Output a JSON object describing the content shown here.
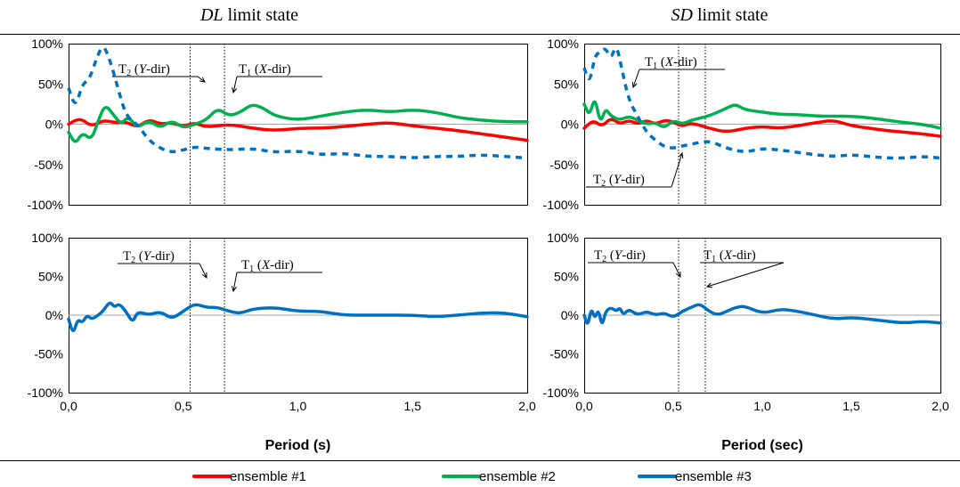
{
  "chart_data": [
    {
      "id": "dl-top",
      "type": "line",
      "title": "DL limit state",
      "xlim": [
        0,
        2.0
      ],
      "ylim": [
        -100,
        100
      ],
      "yticks": [
        "100%",
        "50%",
        "0%",
        "-50%",
        "-100%"
      ],
      "xticks": [],
      "grid": false,
      "vlines": [
        0.53,
        0.68
      ],
      "annotations": [
        {
          "label": "T2 (Y-dir)",
          "points_to": 0.53
        },
        {
          "label": "T1 (X-dir)",
          "points_to": 0.68
        }
      ],
      "series": [
        {
          "name": "ensemble #1",
          "color": "#ff0000",
          "dashed": false,
          "x": [
            0,
            0.05,
            0.1,
            0.15,
            0.2,
            0.25,
            0.3,
            0.35,
            0.4,
            0.45,
            0.5,
            0.55,
            0.6,
            0.7,
            0.8,
            0.9,
            1.0,
            1.1,
            1.2,
            1.3,
            1.4,
            1.5,
            1.6,
            1.7,
            1.8,
            1.9,
            2.0
          ],
          "y": [
            0,
            8,
            -3,
            5,
            2,
            3,
            -4,
            6,
            0,
            2,
            -3,
            2,
            -4,
            0,
            -5,
            -8,
            -5,
            -5,
            -3,
            0,
            2,
            -2,
            -5,
            -8,
            -12,
            -16,
            -20
          ]
        },
        {
          "name": "ensemble #2",
          "color": "#00b050",
          "dashed": false,
          "x": [
            0,
            0.03,
            0.06,
            0.1,
            0.13,
            0.16,
            0.2,
            0.23,
            0.26,
            0.3,
            0.35,
            0.4,
            0.45,
            0.5,
            0.55,
            0.6,
            0.65,
            0.7,
            0.75,
            0.8,
            0.85,
            0.9,
            1.0,
            1.1,
            1.2,
            1.3,
            1.4,
            1.5,
            1.6,
            1.7,
            1.8,
            1.9,
            2.0
          ],
          "y": [
            -10,
            -25,
            -10,
            -20,
            5,
            25,
            10,
            0,
            10,
            -5,
            5,
            -5,
            5,
            -5,
            0,
            5,
            20,
            10,
            15,
            25,
            20,
            10,
            5,
            10,
            15,
            18,
            15,
            18,
            15,
            8,
            5,
            3,
            3
          ]
        },
        {
          "name": "ensemble #3",
          "color": "#0070c0",
          "dashed": true,
          "x": [
            0,
            0.03,
            0.06,
            0.09,
            0.12,
            0.15,
            0.18,
            0.21,
            0.25,
            0.3,
            0.35,
            0.4,
            0.45,
            0.5,
            0.55,
            0.6,
            0.7,
            0.8,
            0.9,
            1.0,
            1.1,
            1.2,
            1.3,
            1.4,
            1.5,
            1.6,
            1.7,
            1.8,
            1.9,
            2.0
          ],
          "y": [
            45,
            20,
            50,
            55,
            80,
            100,
            80,
            50,
            10,
            0,
            -20,
            -30,
            -35,
            -32,
            -28,
            -30,
            -32,
            -30,
            -35,
            -33,
            -38,
            -36,
            -40,
            -40,
            -42,
            -40,
            -40,
            -38,
            -40,
            -42
          ]
        }
      ]
    },
    {
      "id": "sd-top",
      "type": "line",
      "title": "SD limit state",
      "xlim": [
        0,
        2.0
      ],
      "ylim": [
        -100,
        100
      ],
      "yticks": [
        "100%",
        "50%",
        "0%",
        "-50%",
        "-100%"
      ],
      "xticks": [],
      "grid": false,
      "vlines": [
        0.53,
        0.68
      ],
      "annotations": [
        {
          "label": "T1 (X-dir)",
          "points_to": 0.68
        },
        {
          "label": "T2 (Y-dir)",
          "points_to": 0.53
        }
      ],
      "series": [
        {
          "name": "ensemble #1",
          "color": "#ff0000",
          "dashed": false,
          "x": [
            0,
            0.05,
            0.1,
            0.15,
            0.2,
            0.25,
            0.3,
            0.35,
            0.4,
            0.45,
            0.5,
            0.55,
            0.6,
            0.7,
            0.8,
            0.9,
            1.0,
            1.1,
            1.2,
            1.3,
            1.4,
            1.5,
            1.6,
            1.7,
            1.8,
            1.9,
            2.0
          ],
          "y": [
            -5,
            5,
            -3,
            8,
            0,
            5,
            0,
            5,
            0,
            5,
            3,
            -3,
            2,
            -5,
            -10,
            -5,
            -3,
            -5,
            -2,
            2,
            5,
            -2,
            -5,
            -8,
            -10,
            -12,
            -15
          ]
        },
        {
          "name": "ensemble #2",
          "color": "#00b050",
          "dashed": false,
          "x": [
            0,
            0.03,
            0.06,
            0.09,
            0.12,
            0.15,
            0.2,
            0.25,
            0.3,
            0.35,
            0.4,
            0.45,
            0.5,
            0.55,
            0.6,
            0.7,
            0.8,
            0.85,
            0.9,
            1.0,
            1.1,
            1.2,
            1.3,
            1.4,
            1.5,
            1.6,
            1.7,
            1.8,
            1.9,
            2.0
          ],
          "y": [
            25,
            10,
            35,
            0,
            20,
            10,
            5,
            10,
            5,
            0,
            2,
            -5,
            5,
            0,
            5,
            10,
            20,
            25,
            18,
            15,
            12,
            12,
            10,
            10,
            10,
            8,
            5,
            2,
            0,
            -5
          ]
        },
        {
          "name": "ensemble #3",
          "color": "#0070c0",
          "dashed": true,
          "x": [
            0,
            0.03,
            0.06,
            0.09,
            0.12,
            0.15,
            0.18,
            0.21,
            0.25,
            0.3,
            0.35,
            0.4,
            0.45,
            0.5,
            0.55,
            0.6,
            0.7,
            0.8,
            0.9,
            1.0,
            1.1,
            1.2,
            1.3,
            1.4,
            1.5,
            1.6,
            1.7,
            1.8,
            1.9,
            2.0
          ],
          "y": [
            70,
            50,
            85,
            90,
            95,
            80,
            100,
            70,
            30,
            10,
            -10,
            -20,
            -28,
            -30,
            -27,
            -25,
            -20,
            -30,
            -35,
            -30,
            -32,
            -35,
            -38,
            -40,
            -38,
            -40,
            -42,
            -42,
            -40,
            -42
          ]
        }
      ]
    },
    {
      "id": "dl-bottom",
      "type": "line",
      "title": "",
      "xlim": [
        0,
        2.0
      ],
      "ylim": [
        -100,
        100
      ],
      "yticks": [
        "100%",
        "50%",
        "0%",
        "-50%",
        "-100%"
      ],
      "xticks": [
        "0,0",
        "0,5",
        "1,0",
        "1,5",
        "2,0"
      ],
      "xlabel": "Period (s)",
      "grid": false,
      "vlines": [
        0.53,
        0.68
      ],
      "annotations": [
        {
          "label": "T2 (Y-dir)",
          "points_to": 0.53
        },
        {
          "label": "T1 (X-dir)",
          "points_to": 0.68
        }
      ],
      "series": [
        {
          "name": "ensemble #3",
          "color": "#0070c0",
          "dashed": false,
          "x": [
            0,
            0.02,
            0.04,
            0.06,
            0.08,
            0.1,
            0.12,
            0.15,
            0.18,
            0.2,
            0.22,
            0.25,
            0.28,
            0.3,
            0.35,
            0.4,
            0.45,
            0.5,
            0.55,
            0.6,
            0.65,
            0.7,
            0.75,
            0.8,
            0.9,
            1.0,
            1.1,
            1.2,
            1.3,
            1.4,
            1.5,
            1.6,
            1.7,
            1.8,
            1.9,
            2.0
          ],
          "y": [
            -5,
            -25,
            -5,
            -10,
            0,
            -5,
            -2,
            5,
            18,
            10,
            15,
            5,
            -10,
            5,
            0,
            5,
            -5,
            5,
            15,
            10,
            10,
            5,
            2,
            8,
            10,
            5,
            5,
            0,
            0,
            0,
            0,
            -2,
            0,
            3,
            3,
            -2
          ]
        }
      ]
    },
    {
      "id": "sd-bottom",
      "type": "line",
      "title": "",
      "xlim": [
        0,
        2.0
      ],
      "ylim": [
        -100,
        100
      ],
      "yticks": [
        "100%",
        "50%",
        "0%",
        "-50%",
        "-100%"
      ],
      "xticks": [
        "0,0",
        "0,5",
        "1,0",
        "1,5",
        "2,0"
      ],
      "xlabel": "Period (sec)",
      "grid": false,
      "vlines": [
        0.53,
        0.68
      ],
      "annotations": [
        {
          "label": "T2 (Y-dir)",
          "points_to": 0.53
        },
        {
          "label": "T1 (X-dir)",
          "points_to": 0.68
        }
      ],
      "series": [
        {
          "name": "ensemble #3",
          "color": "#0070c0",
          "dashed": false,
          "x": [
            0,
            0.02,
            0.04,
            0.06,
            0.08,
            0.1,
            0.12,
            0.15,
            0.18,
            0.2,
            0.22,
            0.25,
            0.3,
            0.35,
            0.4,
            0.45,
            0.5,
            0.55,
            0.6,
            0.65,
            0.7,
            0.75,
            0.8,
            0.85,
            0.9,
            1.0,
            1.1,
            1.2,
            1.3,
            1.4,
            1.5,
            1.6,
            1.7,
            1.8,
            1.9,
            2.0
          ],
          "y": [
            0,
            -15,
            10,
            -5,
            8,
            -15,
            5,
            10,
            5,
            10,
            0,
            8,
            0,
            5,
            0,
            3,
            -3,
            5,
            10,
            15,
            5,
            0,
            5,
            10,
            12,
            2,
            8,
            5,
            0,
            -5,
            -3,
            -5,
            -8,
            -10,
            -8,
            -10
          ]
        }
      ]
    }
  ],
  "legend": [
    {
      "label": "ensemble #1",
      "color": "#ff0000"
    },
    {
      "label": "ensemble #2",
      "color": "#00b050"
    },
    {
      "label": "ensemble #3",
      "color": "#0070c0"
    }
  ]
}
